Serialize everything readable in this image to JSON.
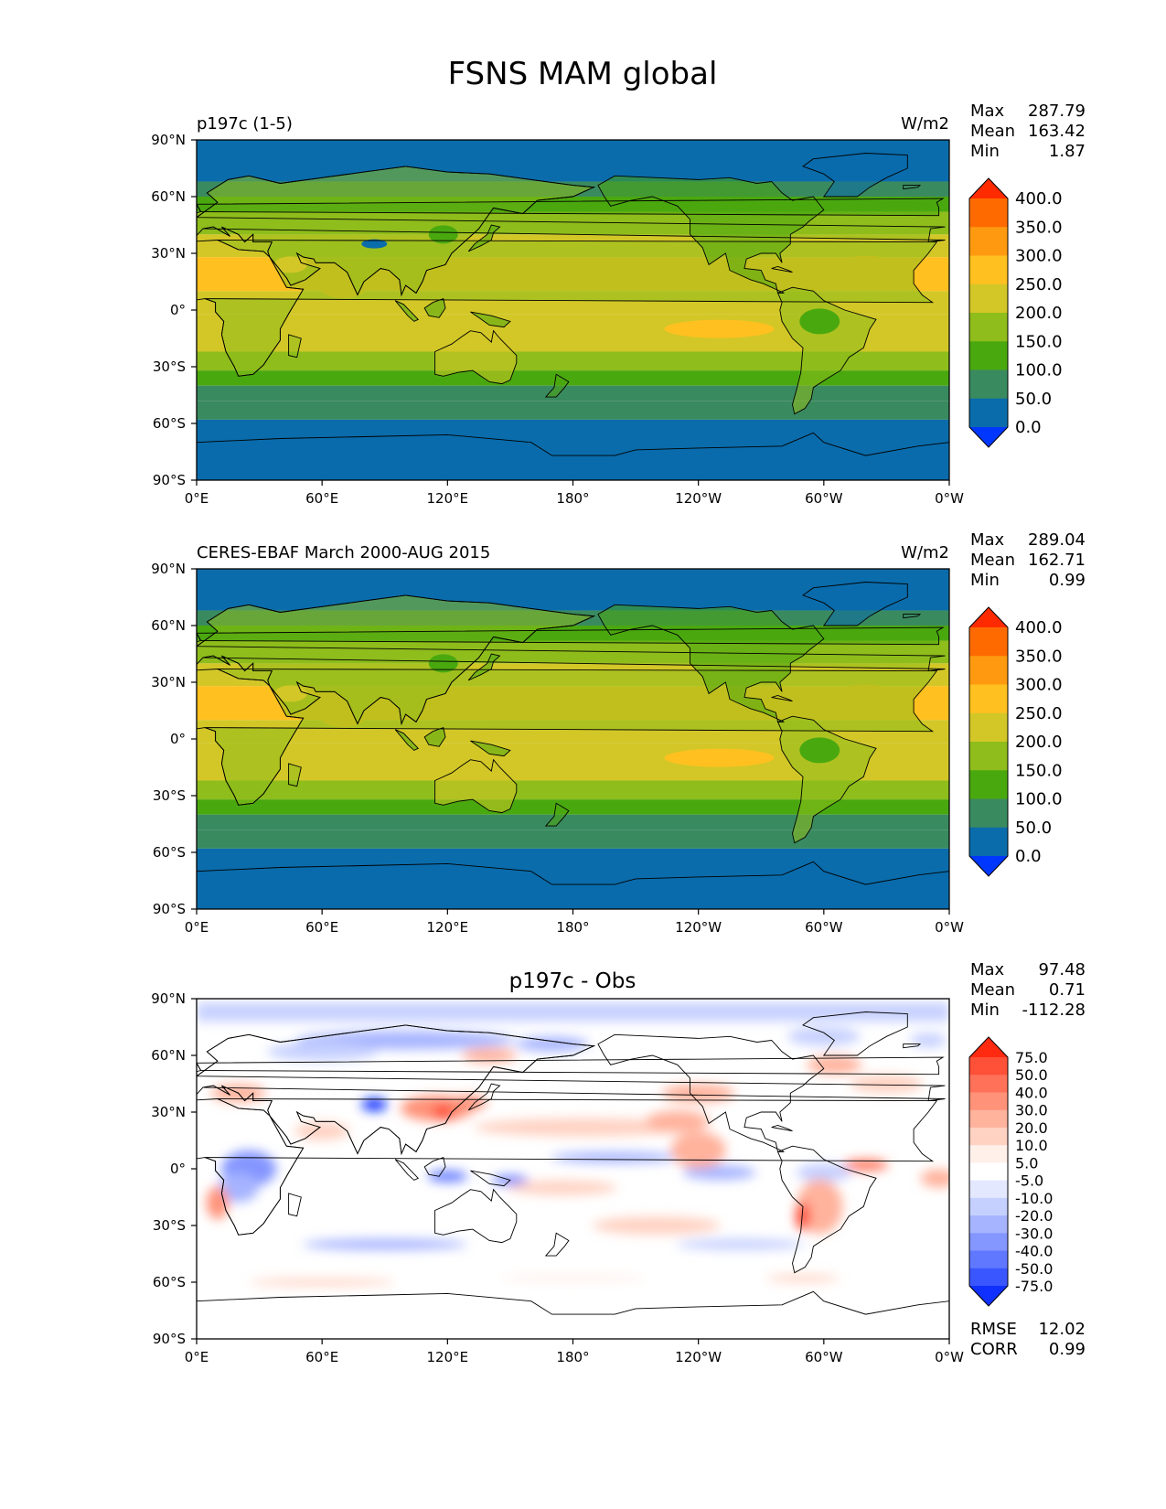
{
  "title": "FSNS MAM global",
  "panels": [
    {
      "left_label": "p197c (1-5)",
      "center_label": "",
      "units": "W/m2",
      "stats": [
        {
          "label": "Max",
          "value": "287.79"
        },
        {
          "label": "Mean",
          "value": "163.42"
        },
        {
          "label": "Min",
          "value": "1.87"
        }
      ],
      "extra_stats": [],
      "colorbar": {
        "labels": [
          "400.0",
          "350.0",
          "300.0",
          "250.0",
          "200.0",
          "150.0",
          "100.0",
          "50.0",
          "0.0"
        ],
        "colors": [
          "#ff2a00",
          "#ff6a00",
          "#ff9a10",
          "#ffc020",
          "#d2c727",
          "#8ebd1c",
          "#4aa80f",
          "#3a8a60",
          "#0a6cab",
          "#0037ff"
        ]
      }
    },
    {
      "left_label": "CERES-EBAF March 2000-AUG 2015",
      "center_label": "",
      "units": "W/m2",
      "stats": [
        {
          "label": "Max",
          "value": "289.04"
        },
        {
          "label": "Mean",
          "value": "162.71"
        },
        {
          "label": "Min",
          "value": "0.99"
        }
      ],
      "extra_stats": [],
      "colorbar": {
        "labels": [
          "400.0",
          "350.0",
          "300.0",
          "250.0",
          "200.0",
          "150.0",
          "100.0",
          "50.0",
          "0.0"
        ],
        "colors": [
          "#ff2a00",
          "#ff6a00",
          "#ff9a10",
          "#ffc020",
          "#d2c727",
          "#8ebd1c",
          "#4aa80f",
          "#3a8a60",
          "#0a6cab",
          "#0037ff"
        ]
      }
    },
    {
      "left_label": "",
      "center_label": "p197c - Obs",
      "units": "",
      "stats": [
        {
          "label": "Max",
          "value": "97.48"
        },
        {
          "label": "Mean",
          "value": "0.71"
        },
        {
          "label": "Min",
          "value": "-112.28"
        }
      ],
      "extra_stats": [
        {
          "label": "RMSE",
          "value": "12.02"
        },
        {
          "label": "CORR",
          "value": "0.99"
        }
      ],
      "colorbar": {
        "labels": [
          "75.0",
          "50.0",
          "40.0",
          "30.0",
          "20.0",
          "10.0",
          "5.0",
          "-5.0",
          "-10.0",
          "-20.0",
          "-30.0",
          "-40.0",
          "-50.0",
          "-75.0"
        ],
        "colors": [
          "#ff2a10",
          "#ff5038",
          "#ff7158",
          "#ff9278",
          "#ffb29c",
          "#ffd2c2",
          "#fff0ea",
          "#ffffff",
          "#e4e8ff",
          "#c6d0ff",
          "#a6b4ff",
          "#8496ff",
          "#6078ff",
          "#3a56ff",
          "#1030ff"
        ]
      }
    }
  ],
  "axes": {
    "lat_ticks": [
      "90°N",
      "60°N",
      "30°N",
      "0°",
      "30°S",
      "60°S",
      "90°S"
    ],
    "lon_ticks": [
      "0°E",
      "60°E",
      "120°E",
      "180°",
      "120°W",
      "60°W",
      "0°W"
    ]
  }
}
